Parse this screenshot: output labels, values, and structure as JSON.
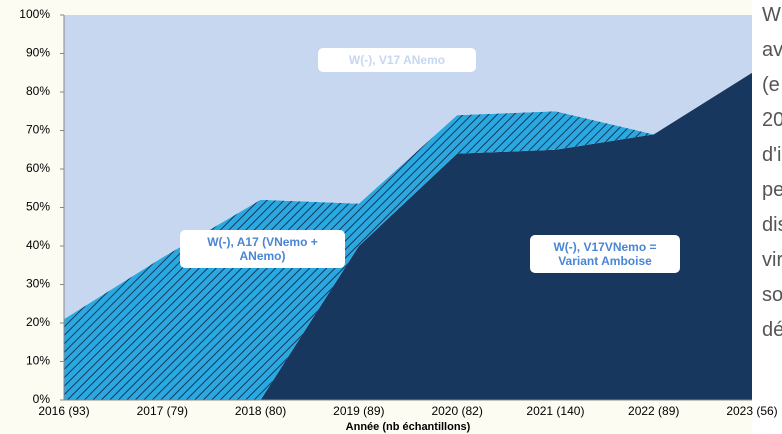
{
  "chart_data": {
    "type": "stacked_area",
    "x_label": "Année (nb échantillons)",
    "categories": [
      "2016 (93)",
      "2017 (79)",
      "2018 (80)",
      "2019 (89)",
      "2020 (82)",
      "2021 (140)",
      "2022 (89)",
      "2023 (56)"
    ],
    "series": [
      {
        "name": "W(-), V17VNemo = Variant Amboise",
        "color": "#17375e",
        "values": [
          0,
          0,
          0,
          40,
          64,
          65,
          69,
          85
        ]
      },
      {
        "name": "W(-), A17 (VNemo + ANemo)",
        "color": "#29a9e0",
        "hatch": true,
        "values": [
          21,
          37,
          52,
          11,
          10,
          10,
          0,
          0
        ]
      },
      {
        "name": "W(-), V17 ANemo",
        "color": "#c6d7ef",
        "values": [
          79,
          63,
          48,
          49,
          26,
          25,
          31,
          15
        ]
      }
    ],
    "ylim": [
      0,
      100
    ],
    "yticks": [
      {
        "value": 0,
        "label": "0%"
      },
      {
        "value": 10,
        "label": "10%"
      },
      {
        "value": 20,
        "label": "20%"
      },
      {
        "value": 30,
        "label": "30%"
      },
      {
        "value": 40,
        "label": "40%"
      },
      {
        "value": 50,
        "label": "50%"
      },
      {
        "value": 60,
        "label": "60%"
      },
      {
        "value": 70,
        "label": "70%"
      },
      {
        "value": 80,
        "label": "80%"
      },
      {
        "value": 90,
        "label": "90%"
      },
      {
        "value": 100,
        "label": "100%"
      }
    ]
  },
  "side_text": [
    "W",
    "av",
    "(e",
    "20",
    "d'i",
    "pe",
    "dis",
    "vir",
    "so",
    "dé"
  ]
}
